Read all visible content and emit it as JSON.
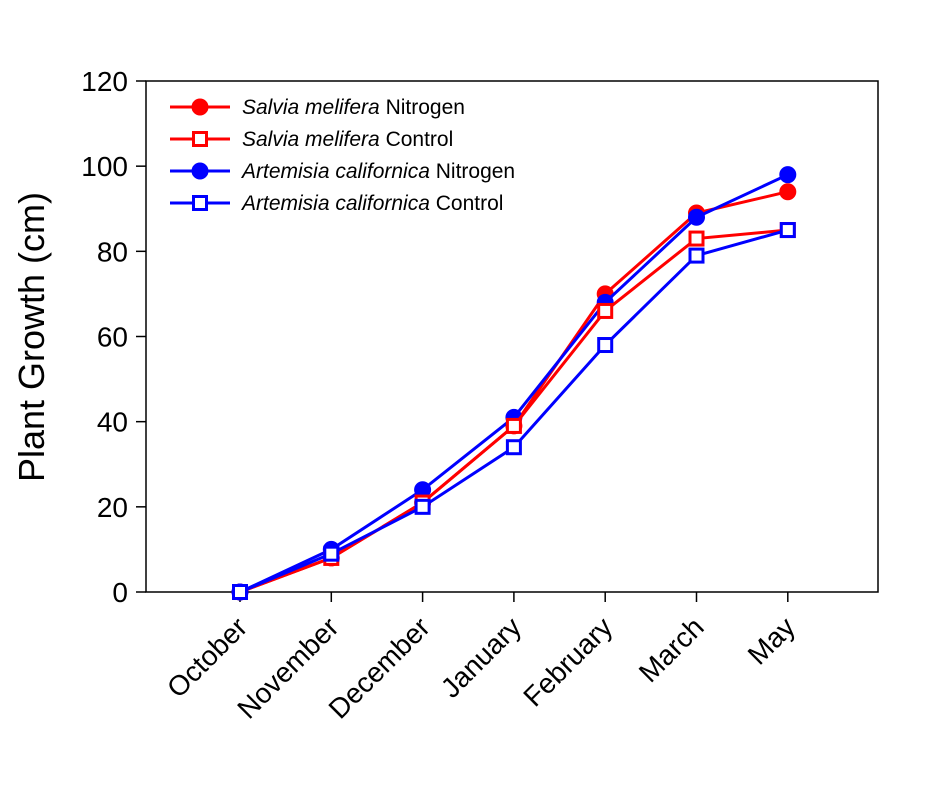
{
  "chart_data": {
    "type": "line",
    "title": "",
    "xlabel": "",
    "ylabel": "Plant Growth (cm)",
    "categories": [
      "October",
      "November",
      "December",
      "January",
      "February",
      "March",
      "May"
    ],
    "ylim": [
      0,
      120
    ],
    "yticks": [
      0,
      20,
      40,
      60,
      80,
      100,
      120
    ],
    "grid": false,
    "legend_position": "top-left",
    "series": [
      {
        "name": "Salvia melifera Nitrogen",
        "species": "Salvia melifera",
        "treatment": "Nitrogen",
        "color": "#ff0000",
        "marker": "filled-circle",
        "values": [
          0,
          8,
          21,
          39,
          70,
          89,
          94
        ]
      },
      {
        "name": "Salvia melifera Control",
        "species": "Salvia melifera",
        "treatment": "Control",
        "color": "#ff0000",
        "marker": "open-square",
        "values": [
          0,
          8,
          21,
          39,
          66,
          83,
          85
        ]
      },
      {
        "name": "Artemisia californica Nitrogen",
        "species": "Artemisia californica",
        "treatment": "Nitrogen",
        "color": "#0000ff",
        "marker": "filled-circle",
        "values": [
          0,
          10,
          24,
          41,
          68,
          88,
          98
        ]
      },
      {
        "name": "Artemisia californica Control",
        "species": "Artemisia californica",
        "treatment": "Control",
        "color": "#0000ff",
        "marker": "open-square",
        "values": [
          0,
          9,
          20,
          34,
          58,
          79,
          85
        ]
      }
    ]
  }
}
